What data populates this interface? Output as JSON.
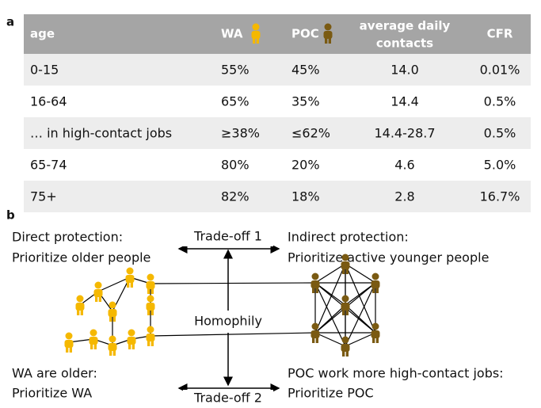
{
  "panel_a": {
    "label": "a"
  },
  "table": {
    "header": [
      "age",
      "WA",
      "POC",
      [
        "average daily",
        "contacts"
      ],
      "CFR"
    ],
    "rows": [
      [
        "0-15",
        "55%",
        "45%",
        "14.0",
        "0.01%"
      ],
      [
        "16-64",
        "65%",
        "35%",
        "14.4",
        "0.5%"
      ],
      [
        "… in high-contact jobs",
        "≥38%",
        "≤62%",
        "14.4-28.7",
        "0.5%"
      ],
      [
        "65-74",
        "80%",
        "20%",
        "4.6",
        "5.0%"
      ],
      [
        "75+",
        "82%",
        "18%",
        "2.8",
        "16.7%"
      ]
    ]
  },
  "panel_b": {
    "label": "b"
  },
  "diagram": {
    "top_left": [
      "Direct protection:",
      "Prioritize older people"
    ],
    "top_right": [
      "Indirect protection:",
      "Prioritize active younger people"
    ],
    "bottom_left": [
      "WA are older:",
      "Prioritize WA"
    ],
    "bottom_right": [
      "POC work more high-contact jobs:",
      "Prioritize POC"
    ],
    "tradeoff_1": "Trade-off 1",
    "tradeoff_2": "Trade-off 2",
    "homophily": "Homophily"
  }
}
